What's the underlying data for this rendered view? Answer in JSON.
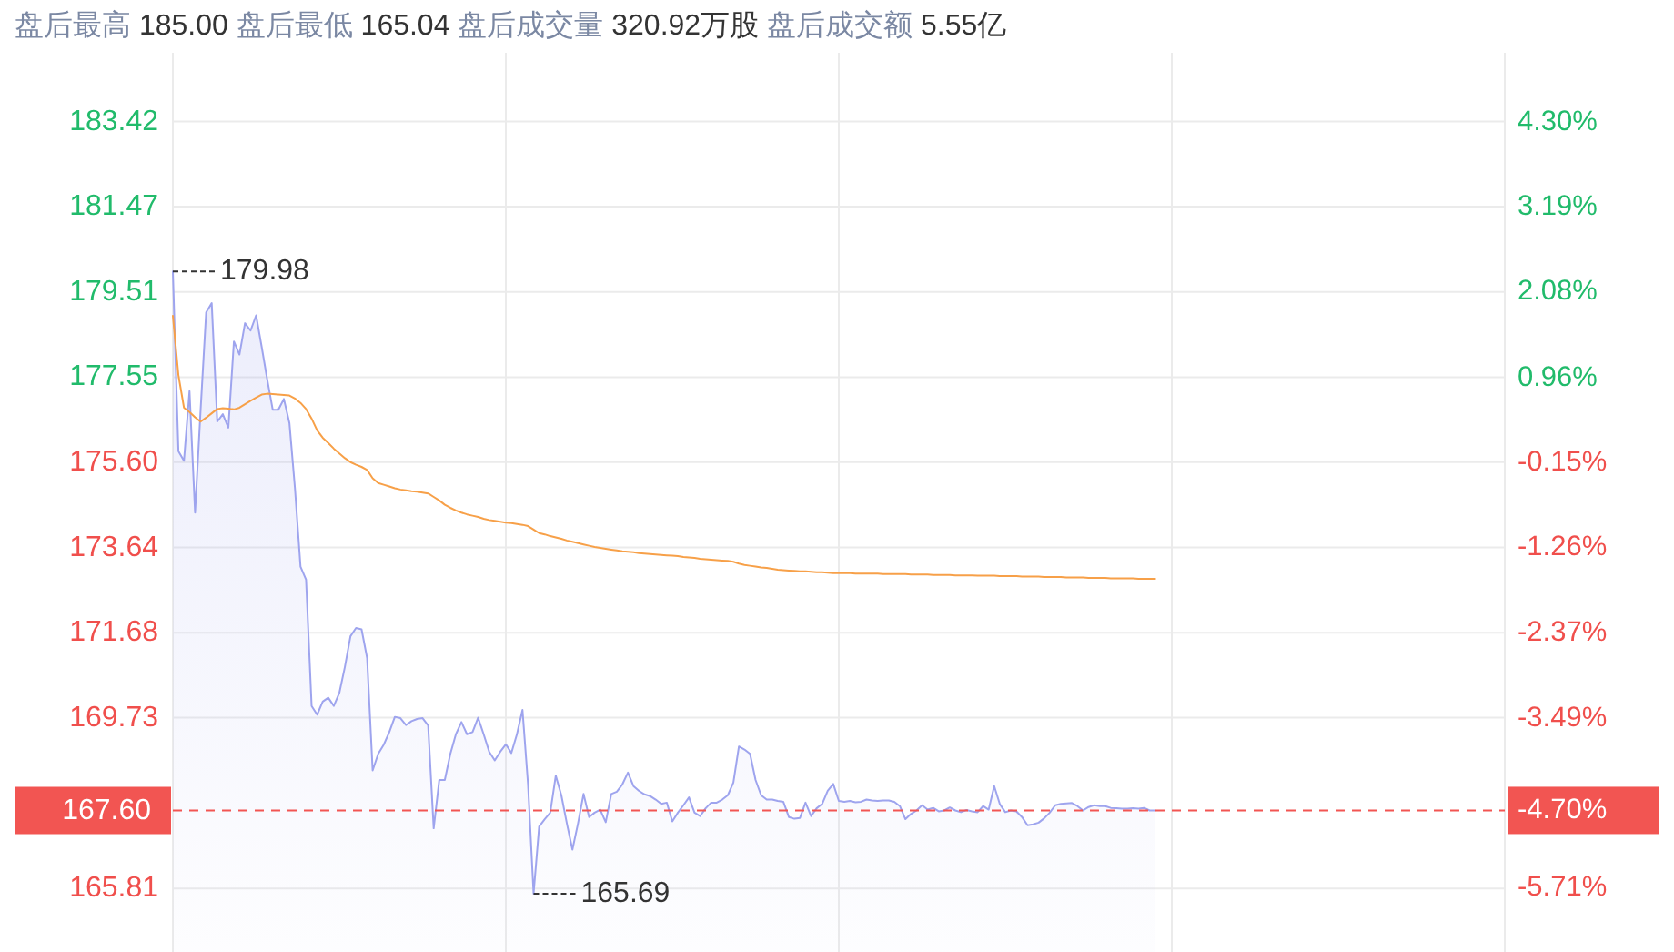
{
  "chart_data": {
    "type": "line",
    "title": "盘后最高 185.00 盘后最低 165.04 盘后成交量 320.92万股 盘后成交额 5.55亿",
    "categories": [
      null,
      null,
      null,
      null,
      null,
      null,
      null,
      null,
      null,
      null,
      null,
      null,
      null,
      null,
      null,
      null,
      null,
      null,
      null,
      null,
      null,
      null,
      null,
      null,
      null,
      null,
      null,
      null,
      null,
      null,
      null,
      null,
      null,
      null,
      null,
      null,
      null,
      null,
      null,
      null,
      null,
      null,
      null,
      null,
      null,
      null,
      null,
      null,
      null,
      null,
      null,
      null,
      null,
      null,
      null,
      null,
      null,
      null,
      null,
      null,
      null,
      null,
      null,
      null,
      null,
      null,
      null,
      null,
      null,
      null,
      null,
      null,
      null,
      null,
      null,
      null,
      null,
      null,
      null,
      null,
      null,
      null,
      null,
      null,
      null,
      null,
      null,
      null,
      null,
      null,
      null,
      null,
      null,
      null,
      null,
      null,
      null,
      null,
      null,
      null,
      null,
      null,
      null,
      null,
      null,
      null,
      null,
      null,
      null,
      null,
      null,
      null,
      null,
      null,
      null,
      null,
      null,
      null,
      null,
      null,
      null,
      null,
      null,
      null,
      null,
      null,
      null,
      null,
      null,
      null,
      null,
      null,
      null,
      null,
      null,
      null,
      null,
      null,
      null,
      null,
      null,
      null,
      null,
      null,
      null,
      null,
      null,
      null,
      null,
      null,
      null,
      null,
      null,
      null,
      null,
      null,
      null,
      null,
      null,
      null,
      null,
      null,
      null,
      null,
      null,
      null,
      null,
      null,
      null,
      null,
      null,
      null,
      null,
      null,
      null,
      null,
      null,
      null,
      null,
      null,
      null,
      null,
      null,
      null,
      null,
      null,
      null,
      null,
      null,
      null,
      null,
      null,
      null,
      null,
      null,
      null,
      null,
      null,
      null,
      null,
      null,
      null,
      null,
      null,
      null,
      null,
      null,
      null,
      null,
      null,
      null,
      null,
      null,
      null,
      null,
      null,
      null,
      null,
      null,
      null,
      null,
      null,
      null,
      null,
      null,
      null,
      null,
      null,
      null,
      null,
      null,
      null,
      null,
      null,
      null,
      null,
      null,
      null,
      null,
      null,
      null
    ],
    "series": [
      {
        "type": "area",
        "color": "#9ea4ee",
        "values": [
          179.98,
          175.85,
          175.63,
          177.23,
          174.44,
          176.8,
          179.04,
          179.25,
          176.53,
          176.7,
          176.39,
          178.37,
          178.07,
          178.79,
          178.62,
          178.97,
          178.25,
          177.5,
          176.8,
          176.8,
          177.05,
          176.5,
          175.0,
          173.2,
          172.9,
          170.0,
          169.8,
          170.1,
          170.19,
          170.0,
          170.3,
          170.9,
          171.6,
          171.79,
          171.76,
          171.1,
          168.52,
          168.9,
          169.11,
          169.4,
          169.75,
          169.72,
          169.56,
          169.65,
          169.7,
          169.72,
          169.55,
          167.19,
          168.3,
          168.3,
          168.9,
          169.35,
          169.63,
          169.35,
          169.4,
          169.73,
          169.35,
          168.95,
          168.75,
          168.95,
          169.12,
          168.92,
          169.35,
          169.91,
          168.2,
          165.69,
          167.23,
          167.4,
          167.55,
          168.4,
          167.95,
          167.3,
          166.7,
          167.3,
          167.98,
          167.45,
          167.55,
          167.62,
          167.33,
          167.98,
          168.03,
          168.2,
          168.47,
          168.16,
          168.05,
          167.97,
          167.93,
          167.85,
          167.75,
          167.78,
          167.35,
          167.55,
          167.72,
          167.9,
          167.55,
          167.47,
          167.65,
          167.78,
          167.78,
          167.85,
          167.95,
          168.24,
          169.07,
          169.0,
          168.9,
          168.3,
          167.95,
          167.85,
          167.85,
          167.82,
          167.8,
          167.45,
          167.41,
          167.43,
          167.78,
          167.47,
          167.65,
          167.75,
          168.05,
          168.21,
          167.82,
          167.8,
          167.82,
          167.79,
          167.8,
          167.85,
          167.83,
          167.82,
          167.83,
          167.83,
          167.8,
          167.7,
          167.4,
          167.52,
          167.6,
          167.72,
          167.62,
          167.66,
          167.58,
          167.6,
          167.67,
          167.6,
          167.56,
          167.61,
          167.58,
          167.56,
          167.7,
          167.62,
          168.16,
          167.75,
          167.56,
          167.6,
          167.58,
          167.45,
          167.26,
          167.28,
          167.32,
          167.42,
          167.55,
          167.72,
          167.75,
          167.76,
          167.77,
          167.7,
          167.6,
          167.68,
          167.72,
          167.7,
          167.7,
          167.66,
          167.65,
          167.64,
          167.64,
          167.65,
          167.64,
          167.66,
          167.6,
          167.6,
          null,
          null,
          null,
          null,
          null,
          null,
          null,
          null,
          null,
          null,
          null,
          null,
          null,
          null,
          null,
          null,
          null,
          null,
          null,
          null,
          null,
          null,
          null,
          null,
          null,
          null,
          null,
          null,
          null,
          null,
          null,
          null,
          null,
          null,
          null,
          null,
          null,
          null,
          null,
          null,
          null,
          null,
          null,
          null,
          null,
          null,
          null,
          null,
          null,
          null,
          null,
          null,
          null,
          null,
          null,
          null,
          null,
          null,
          null,
          null,
          null,
          null,
          null
        ]
      },
      {
        "color": "#f7a048",
        "values": [
          178.96,
          177.6,
          176.85,
          176.75,
          176.63,
          176.53,
          176.62,
          176.72,
          176.82,
          176.84,
          176.83,
          176.81,
          176.85,
          176.93,
          177.01,
          177.08,
          177.15,
          177.17,
          177.16,
          177.15,
          177.14,
          177.13,
          177.06,
          176.96,
          176.82,
          176.6,
          176.33,
          176.16,
          176.04,
          175.91,
          175.8,
          175.69,
          175.6,
          175.54,
          175.49,
          175.42,
          175.23,
          175.12,
          175.08,
          175.04,
          175.0,
          174.97,
          174.95,
          174.93,
          174.92,
          174.9,
          174.88,
          174.8,
          174.72,
          174.62,
          174.55,
          174.49,
          174.44,
          174.4,
          174.37,
          174.34,
          174.3,
          174.27,
          174.25,
          174.23,
          174.21,
          174.2,
          174.18,
          174.16,
          174.13,
          174.05,
          173.97,
          173.94,
          173.9,
          173.87,
          173.84,
          173.8,
          173.77,
          173.74,
          173.71,
          173.68,
          173.65,
          173.63,
          173.61,
          173.59,
          173.57,
          173.55,
          173.54,
          173.53,
          173.51,
          173.5,
          173.49,
          173.48,
          173.47,
          173.46,
          173.45,
          173.44,
          173.42,
          173.41,
          173.4,
          173.38,
          173.37,
          173.36,
          173.35,
          173.34,
          173.33,
          173.31,
          173.27,
          173.24,
          173.22,
          173.2,
          173.18,
          173.17,
          173.15,
          173.13,
          173.12,
          173.11,
          173.1,
          173.09,
          173.09,
          173.08,
          173.07,
          173.07,
          173.06,
          173.05,
          173.05,
          173.05,
          173.05,
          173.04,
          173.04,
          173.04,
          173.04,
          173.04,
          173.03,
          173.03,
          173.03,
          173.03,
          173.03,
          173.02,
          173.02,
          173.02,
          173.02,
          173.01,
          173.01,
          173.01,
          173.01,
          173.0,
          173.0,
          173.0,
          173.0,
          172.99,
          172.99,
          172.99,
          172.99,
          172.98,
          172.98,
          172.98,
          172.98,
          172.97,
          172.97,
          172.97,
          172.97,
          172.96,
          172.96,
          172.96,
          172.96,
          172.95,
          172.95,
          172.95,
          172.95,
          172.94,
          172.94,
          172.94,
          172.94,
          172.93,
          172.93,
          172.93,
          172.93,
          172.93,
          172.92,
          172.92,
          172.92,
          172.92,
          null,
          null,
          null,
          null,
          null,
          null,
          null,
          null,
          null,
          null,
          null,
          null,
          null,
          null,
          null,
          null,
          null,
          null,
          null,
          null,
          null,
          null,
          null,
          null,
          null,
          null,
          null,
          null,
          null,
          null,
          null,
          null,
          null,
          null,
          null,
          null,
          null,
          null,
          null,
          null,
          null,
          null,
          null,
          null,
          null,
          null,
          null,
          null,
          null,
          null,
          null,
          null,
          null,
          null,
          null,
          null,
          null,
          null,
          null,
          null,
          null,
          null,
          null
        ]
      }
    ],
    "ylim": [
      164.35,
      185.0
    ],
    "yticks": [
      165.81,
      169.73,
      171.68,
      173.64,
      {
        "value": 175.6,
        "label": "175.60"
      },
      177.55,
      179.51,
      181.47,
      183.42
    ],
    "y2lim": [
      -6.55,
      5.2
    ],
    "y2ticks": [
      {
        "value": -5.71,
        "label": "-5.71%"
      },
      {
        "value": -4.7,
        "label": "-4.70%"
      },
      {
        "value": -3.49,
        "label": "-3.49%"
      },
      {
        "value": -2.37,
        "label": "-2.37%"
      },
      {
        "value": -1.26,
        "label": "-1.26%"
      },
      {
        "value": -0.15,
        "label": "-0.15%"
      },
      {
        "value": 0.96,
        "label": "0.96%"
      },
      {
        "value": 2.08,
        "label": "2.08%"
      },
      {
        "value": 3.19,
        "label": "3.19%"
      },
      {
        "value": 4.3,
        "label": "4.30%"
      }
    ],
    "ref_lines": [
      {
        "axis": "y",
        "value": 167.6,
        "label": "167.60",
        "color": "#f25552",
        "line_style": "dashed"
      }
    ],
    "annotations": [
      "179.98",
      "165.69"
    ],
    "grid": true
  }
}
